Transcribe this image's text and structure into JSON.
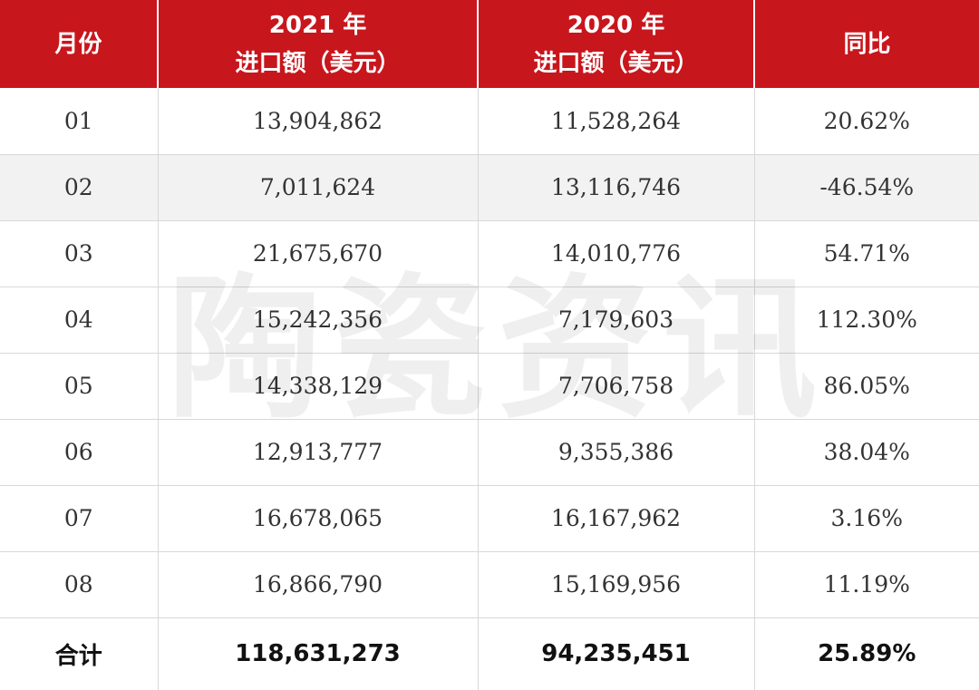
{
  "header": {
    "month": "月份",
    "year2021_line1": "2021 年",
    "year2021_line2": "进口额（美元）",
    "year2020_line1": "2020 年",
    "year2020_line2": "进口额（美元）",
    "yoy": "同比"
  },
  "rows": [
    {
      "month": "01",
      "y2021": "13,904,862",
      "y2020": "11,528,264",
      "yoy": "20.62%"
    },
    {
      "month": "02",
      "y2021": "7,011,624",
      "y2020": "13,116,746",
      "yoy": "-46.54%"
    },
    {
      "month": "03",
      "y2021": "21,675,670",
      "y2020": "14,010,776",
      "yoy": "54.71%"
    },
    {
      "month": "04",
      "y2021": "15,242,356",
      "y2020": "7,179,603",
      "yoy": "112.30%"
    },
    {
      "month": "05",
      "y2021": "14,338,129",
      "y2020": "7,706,758",
      "yoy": "86.05%"
    },
    {
      "month": "06",
      "y2021": "12,913,777",
      "y2020": "9,355,386",
      "yoy": "38.04%"
    },
    {
      "month": "07",
      "y2021": "16,678,065",
      "y2020": "16,167,962",
      "yoy": "3.16%"
    },
    {
      "month": "08",
      "y2021": "16,866,790",
      "y2020": "15,169,956",
      "yoy": "11.19%"
    }
  ],
  "total": {
    "label": "合计",
    "y2021": "118,631,273",
    "y2020": "94,235,451",
    "yoy": "25.89%"
  },
  "watermark": "陶瓷资讯",
  "colors": {
    "header_bg": "#c8161d",
    "header_text": "#ffffff",
    "shaded_row": "#f2f2f2"
  }
}
